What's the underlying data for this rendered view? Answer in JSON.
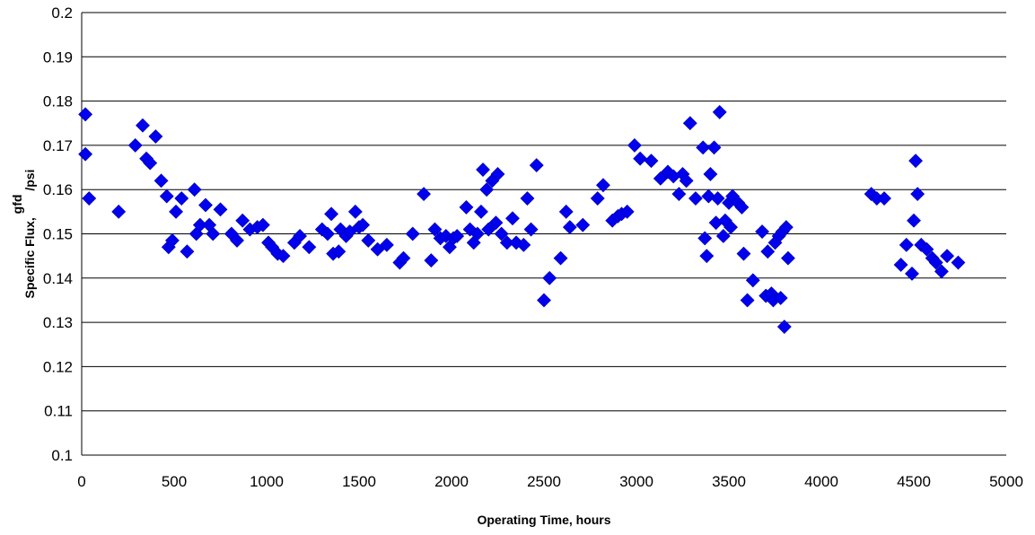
{
  "chart_data": {
    "type": "scatter",
    "title": "",
    "xlabel": "Operating Time, hours",
    "ylabel": "Specific Flux, gfd/psi",
    "ylabel_parts": [
      "Specific Flux,",
      "gfd",
      "/psi"
    ],
    "xlim": [
      0,
      5000
    ],
    "ylim": [
      0.1,
      0.2
    ],
    "x_ticks": [
      "0",
      "500",
      "1000",
      "1500",
      "2000",
      "2500",
      "3000",
      "3500",
      "4000",
      "4500",
      "5000"
    ],
    "y_ticks": [
      "0.2",
      "0.19",
      "0.18",
      "0.17",
      "0.16",
      "0.15",
      "0.14",
      "0.13",
      "0.12",
      "0.11",
      "0.1"
    ],
    "grid": "horizontal",
    "legend": "none",
    "marker": "diamond",
    "colors": {
      "marker": "#0000ee",
      "gridline": "#000000",
      "axis": "#000000"
    },
    "series": [
      {
        "points": [
          [
            20,
            0.177
          ],
          [
            20,
            0.168
          ],
          [
            40,
            0.158
          ],
          [
            200,
            0.155
          ],
          [
            290,
            0.17
          ],
          [
            330,
            0.1745
          ],
          [
            350,
            0.167
          ],
          [
            370,
            0.166
          ],
          [
            400,
            0.172
          ],
          [
            430,
            0.162
          ],
          [
            460,
            0.1585
          ],
          [
            470,
            0.147
          ],
          [
            490,
            0.1485
          ],
          [
            510,
            0.155
          ],
          [
            540,
            0.158
          ],
          [
            570,
            0.146
          ],
          [
            610,
            0.16
          ],
          [
            620,
            0.15
          ],
          [
            640,
            0.152
          ],
          [
            670,
            0.1565
          ],
          [
            690,
            0.152
          ],
          [
            710,
            0.15
          ],
          [
            750,
            0.1555
          ],
          [
            810,
            0.15
          ],
          [
            840,
            0.1485
          ],
          [
            870,
            0.153
          ],
          [
            910,
            0.151
          ],
          [
            950,
            0.1515
          ],
          [
            980,
            0.152
          ],
          [
            1010,
            0.148
          ],
          [
            1030,
            0.147
          ],
          [
            1060,
            0.1455
          ],
          [
            1090,
            0.145
          ],
          [
            1150,
            0.148
          ],
          [
            1180,
            0.1495
          ],
          [
            1230,
            0.147
          ],
          [
            1300,
            0.151
          ],
          [
            1330,
            0.15
          ],
          [
            1350,
            0.1545
          ],
          [
            1360,
            0.1455
          ],
          [
            1390,
            0.146
          ],
          [
            1400,
            0.151
          ],
          [
            1430,
            0.1495
          ],
          [
            1450,
            0.1505
          ],
          [
            1480,
            0.155
          ],
          [
            1500,
            0.1515
          ],
          [
            1520,
            0.152
          ],
          [
            1550,
            0.1485
          ],
          [
            1600,
            0.1465
          ],
          [
            1650,
            0.1475
          ],
          [
            1720,
            0.1435
          ],
          [
            1740,
            0.1445
          ],
          [
            1790,
            0.15
          ],
          [
            1850,
            0.159
          ],
          [
            1890,
            0.144
          ],
          [
            1910,
            0.151
          ],
          [
            1940,
            0.149
          ],
          [
            1970,
            0.1495
          ],
          [
            1990,
            0.147
          ],
          [
            2010,
            0.149
          ],
          [
            2030,
            0.1495
          ],
          [
            2080,
            0.156
          ],
          [
            2100,
            0.151
          ],
          [
            2120,
            0.148
          ],
          [
            2140,
            0.15
          ],
          [
            2160,
            0.155
          ],
          [
            2170,
            0.1645
          ],
          [
            2190,
            0.16
          ],
          [
            2200,
            0.151
          ],
          [
            2220,
            0.162
          ],
          [
            2240,
            0.1525
          ],
          [
            2250,
            0.1635
          ],
          [
            2270,
            0.15
          ],
          [
            2300,
            0.148
          ],
          [
            2330,
            0.1535
          ],
          [
            2350,
            0.148
          ],
          [
            2390,
            0.1475
          ],
          [
            2410,
            0.158
          ],
          [
            2430,
            0.151
          ],
          [
            2460,
            0.1655
          ],
          [
            2500,
            0.135
          ],
          [
            2530,
            0.14
          ],
          [
            2590,
            0.1445
          ],
          [
            2620,
            0.155
          ],
          [
            2640,
            0.1515
          ],
          [
            2710,
            0.152
          ],
          [
            2790,
            0.158
          ],
          [
            2820,
            0.161
          ],
          [
            2870,
            0.153
          ],
          [
            2900,
            0.154
          ],
          [
            2920,
            0.1545
          ],
          [
            2950,
            0.155
          ],
          [
            2990,
            0.17
          ],
          [
            3020,
            0.167
          ],
          [
            3080,
            0.1665
          ],
          [
            3130,
            0.1625
          ],
          [
            3170,
            0.164
          ],
          [
            3200,
            0.163
          ],
          [
            3230,
            0.159
          ],
          [
            3250,
            0.1635
          ],
          [
            3270,
            0.162
          ],
          [
            3290,
            0.175
          ],
          [
            3320,
            0.158
          ],
          [
            3360,
            0.1695
          ],
          [
            3370,
            0.149
          ],
          [
            3380,
            0.145
          ],
          [
            3390,
            0.1585
          ],
          [
            3400,
            0.1635
          ],
          [
            3420,
            0.1695
          ],
          [
            3430,
            0.1525
          ],
          [
            3440,
            0.158
          ],
          [
            3450,
            0.1775
          ],
          [
            3470,
            0.1495
          ],
          [
            3480,
            0.153
          ],
          [
            3500,
            0.157
          ],
          [
            3510,
            0.1515
          ],
          [
            3520,
            0.1585
          ],
          [
            3550,
            0.157
          ],
          [
            3570,
            0.156
          ],
          [
            3580,
            0.1455
          ],
          [
            3600,
            0.135
          ],
          [
            3630,
            0.1395
          ],
          [
            3680,
            0.1505
          ],
          [
            3700,
            0.136
          ],
          [
            3710,
            0.146
          ],
          [
            3730,
            0.1365
          ],
          [
            3740,
            0.135
          ],
          [
            3750,
            0.148
          ],
          [
            3770,
            0.1495
          ],
          [
            3780,
            0.1355
          ],
          [
            3790,
            0.1505
          ],
          [
            3800,
            0.129
          ],
          [
            3810,
            0.1515
          ],
          [
            3820,
            0.1445
          ],
          [
            4270,
            0.159
          ],
          [
            4300,
            0.158
          ],
          [
            4340,
            0.158
          ],
          [
            4430,
            0.143
          ],
          [
            4460,
            0.1475
          ],
          [
            4490,
            0.141
          ],
          [
            4500,
            0.153
          ],
          [
            4510,
            0.1665
          ],
          [
            4520,
            0.159
          ],
          [
            4540,
            0.1475
          ],
          [
            4570,
            0.1465
          ],
          [
            4600,
            0.1445
          ],
          [
            4620,
            0.1435
          ],
          [
            4650,
            0.1415
          ],
          [
            4680,
            0.145
          ],
          [
            4740,
            0.1435
          ]
        ]
      }
    ]
  }
}
